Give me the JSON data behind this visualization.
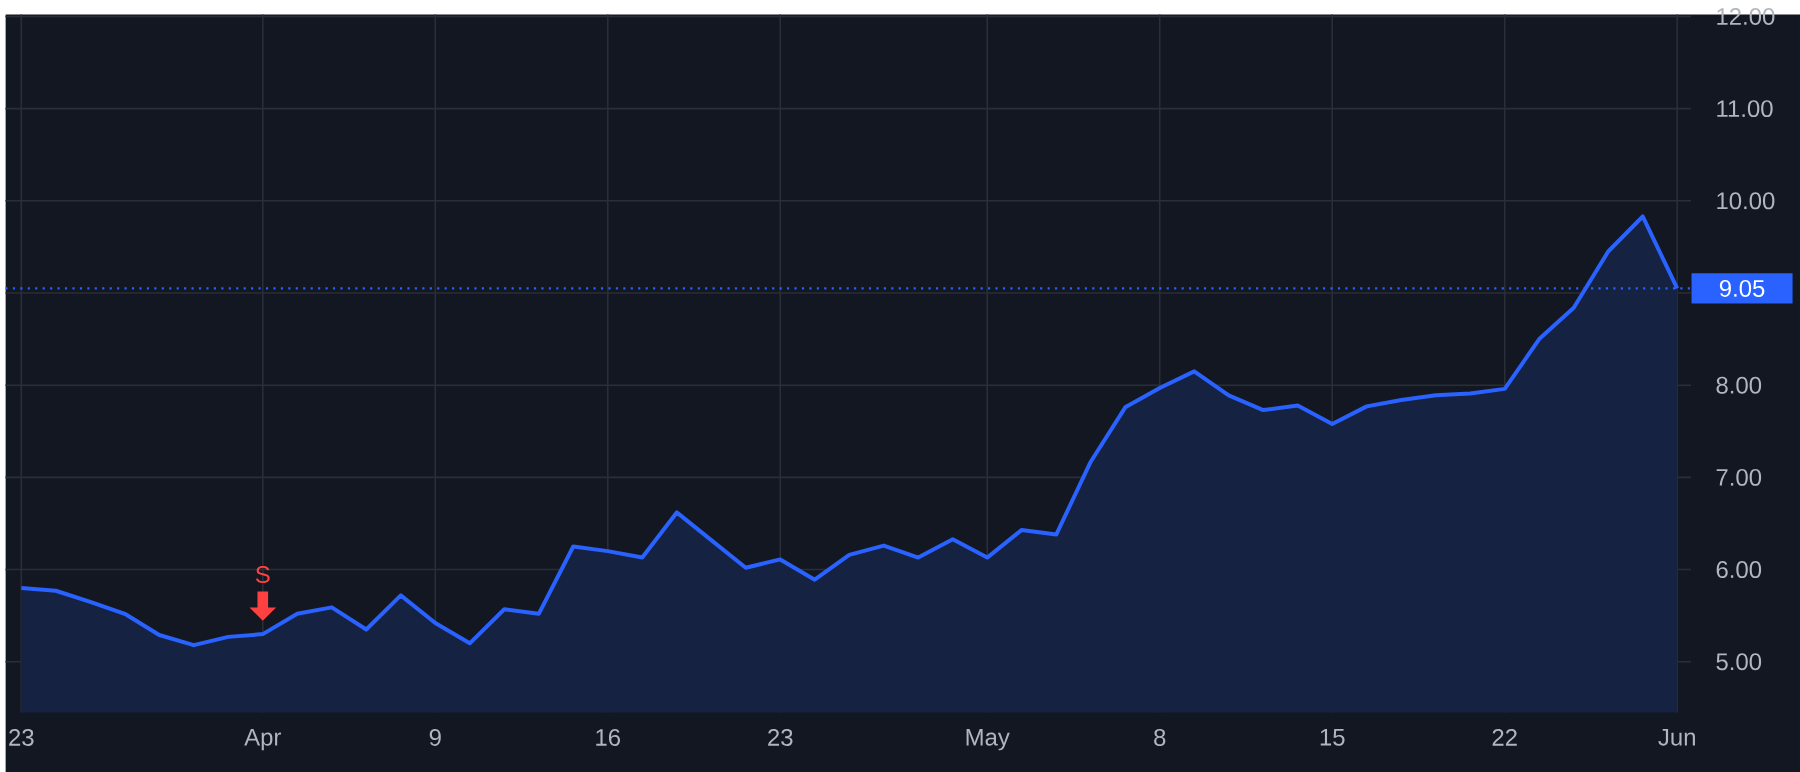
{
  "chart_data": {
    "type": "area",
    "categories": [
      "23",
      null,
      null,
      null,
      null,
      null,
      null,
      "Apr",
      null,
      null,
      null,
      null,
      "9",
      null,
      null,
      null,
      null,
      "16",
      null,
      null,
      null,
      null,
      "23",
      null,
      null,
      null,
      null,
      null,
      "May",
      null,
      null,
      null,
      null,
      "8",
      null,
      null,
      null,
      null,
      "15",
      null,
      null,
      null,
      null,
      "22",
      null,
      null,
      null,
      null,
      "Jun"
    ],
    "series": [
      {
        "color": "#2962ff",
        "values": [
          5.8,
          5.77,
          5.65,
          5.52,
          5.29,
          5.18,
          5.27,
          5.3,
          5.52,
          5.59,
          5.35,
          5.72,
          5.42,
          5.2,
          5.57,
          5.52,
          6.25,
          6.2,
          6.13,
          6.62,
          6.32,
          6.02,
          6.11,
          5.89,
          6.16,
          6.26,
          6.13,
          6.33,
          6.13,
          6.43,
          6.38,
          7.17,
          7.76,
          7.97,
          8.15,
          7.89,
          7.73,
          7.78,
          7.58,
          7.77,
          7.84,
          7.89,
          7.91,
          7.96,
          8.5,
          8.84,
          9.45,
          9.83,
          9.05
        ]
      }
    ],
    "ylim": [
      4.45,
      12.02
    ],
    "yticks": [
      {
        "value": 5,
        "label": "5.00"
      },
      {
        "value": 6,
        "label": "6.00"
      },
      {
        "value": 7,
        "label": "7.00"
      },
      {
        "value": 8,
        "label": "8.00"
      },
      {
        "value": 9,
        "label": null
      },
      {
        "value": 10,
        "label": "10.00"
      },
      {
        "value": 11,
        "label": "11.00"
      },
      {
        "value": 12,
        "label": "12.00"
      }
    ],
    "grid": true,
    "ref_lines": [
      {
        "axis": "y",
        "value": 9.05,
        "label": "9.05",
        "color": "#2962ff",
        "line_style": "dotted"
      }
    ],
    "annotations": [
      {
        "text": "S",
        "x": "Apr",
        "y": 5.3
      }
    ]
  }
}
